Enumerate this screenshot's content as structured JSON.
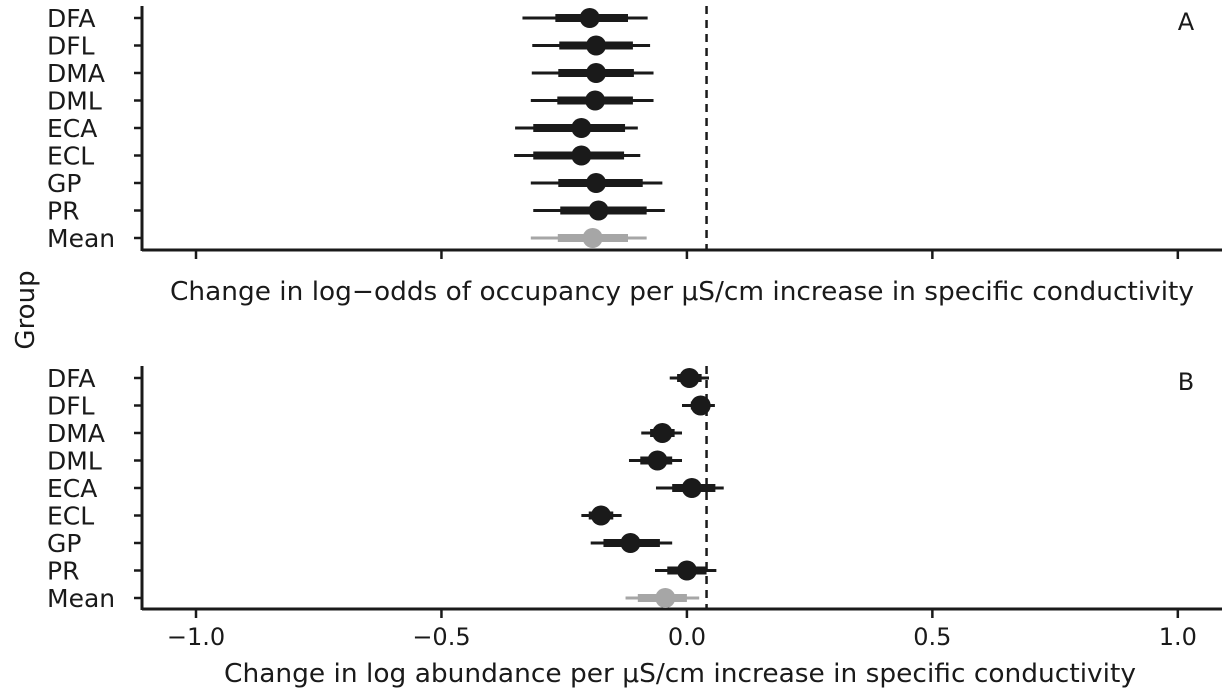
{
  "figure": {
    "y_axis_title": "Group",
    "colors": {
      "series": "#1a1a1a",
      "mean": "#a6a6a6",
      "axis": "#1a1a1a"
    },
    "x_ticks": [
      "−1.0",
      "−0.5",
      "0.0",
      "0.5",
      "1.0"
    ]
  },
  "chart_data": [
    {
      "type": "forest",
      "panel_label": "A",
      "xlabel": "Change in log−odds of occupancy per μS/cm increase in specific conductivity",
      "ylabel": "Group",
      "xlim": [
        -1.11,
        1.09
      ],
      "reference_line": 0.04,
      "categories": [
        "DFA",
        "DFL",
        "DMA",
        "DML",
        "ECA",
        "ECL",
        "GP",
        "PR",
        "Mean"
      ],
      "estimate": [
        -0.198,
        -0.185,
        -0.185,
        -0.187,
        -0.215,
        -0.215,
        -0.185,
        -0.18,
        -0.192
      ],
      "inner_interval": [
        [
          -0.268,
          -0.12
        ],
        [
          -0.26,
          -0.11
        ],
        [
          -0.262,
          -0.108
        ],
        [
          -0.264,
          -0.11
        ],
        [
          -0.313,
          -0.126
        ],
        [
          -0.313,
          -0.128
        ],
        [
          -0.262,
          -0.09
        ],
        [
          -0.258,
          -0.082
        ],
        [
          -0.263,
          -0.12
        ]
      ],
      "outer_interval": [
        [
          -0.335,
          -0.08
        ],
        [
          -0.315,
          -0.075
        ],
        [
          -0.316,
          -0.068
        ],
        [
          -0.318,
          -0.068
        ],
        [
          -0.35,
          -0.1
        ],
        [
          -0.352,
          -0.095
        ],
        [
          -0.318,
          -0.05
        ],
        [
          -0.313,
          -0.045
        ],
        [
          -0.318,
          -0.082
        ]
      ],
      "group_colors": [
        "#1a1a1a",
        "#1a1a1a",
        "#1a1a1a",
        "#1a1a1a",
        "#1a1a1a",
        "#1a1a1a",
        "#1a1a1a",
        "#1a1a1a",
        "#a6a6a6"
      ]
    },
    {
      "type": "forest",
      "panel_label": "B",
      "xlabel": "Change in log abundance per μS/cm increase in specific conductivity",
      "ylabel": "Group",
      "xlim": [
        -1.11,
        1.09
      ],
      "x_ticks": [
        -1.0,
        -0.5,
        0.0,
        0.5,
        1.0
      ],
      "reference_line": 0.04,
      "categories": [
        "DFA",
        "DFL",
        "DMA",
        "DML",
        "ECA",
        "ECL",
        "GP",
        "PR",
        "Mean"
      ],
      "estimate": [
        0.005,
        0.028,
        -0.05,
        -0.06,
        0.01,
        -0.175,
        -0.115,
        0.0,
        -0.044
      ],
      "inner_interval": [
        [
          -0.02,
          0.03
        ],
        [
          0.008,
          0.045
        ],
        [
          -0.075,
          -0.025
        ],
        [
          -0.095,
          -0.03
        ],
        [
          -0.03,
          0.058
        ],
        [
          -0.2,
          -0.15
        ],
        [
          -0.17,
          -0.055
        ],
        [
          -0.04,
          0.04
        ],
        [
          -0.1,
          0.0
        ]
      ],
      "outer_interval": [
        [
          -0.035,
          0.045
        ],
        [
          -0.01,
          0.057
        ],
        [
          -0.093,
          -0.01
        ],
        [
          -0.118,
          -0.01
        ],
        [
          -0.063,
          0.075
        ],
        [
          -0.215,
          -0.133
        ],
        [
          -0.196,
          -0.03
        ],
        [
          -0.065,
          0.06
        ],
        [
          -0.125,
          0.025
        ]
      ],
      "group_colors": [
        "#1a1a1a",
        "#1a1a1a",
        "#1a1a1a",
        "#1a1a1a",
        "#1a1a1a",
        "#1a1a1a",
        "#1a1a1a",
        "#1a1a1a",
        "#a6a6a6"
      ]
    }
  ]
}
